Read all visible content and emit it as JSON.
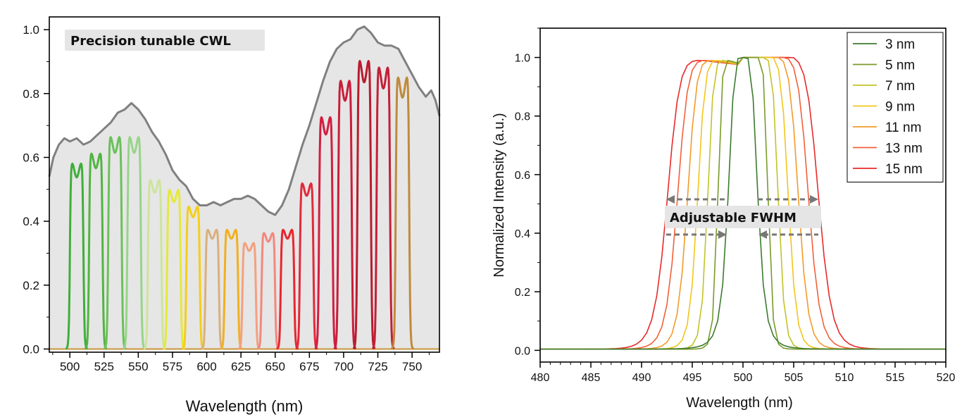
{
  "chart_data": [
    {
      "type": "line",
      "xlabel": "Wavelength (nm)",
      "ylabel": "",
      "xlim": [
        485,
        770
      ],
      "ylim": [
        -0.01,
        1.04
      ],
      "x_ticks": [
        500,
        525,
        550,
        575,
        600,
        625,
        650,
        675,
        700,
        725,
        750
      ],
      "y_ticks": [
        0.0,
        0.2,
        0.4,
        0.6,
        0.8,
        1.0
      ],
      "y_tick_labels": [
        "0.0",
        "0.2",
        "0.4",
        "0.6",
        "0.8",
        "1.0"
      ],
      "grid": false,
      "annotation": "Precision tunable CWL",
      "envelope": {
        "color": "#808080",
        "fill": "#e6e6e6",
        "x": [
          485,
          488,
          492,
          496,
          500,
          505,
          510,
          515,
          520,
          525,
          530,
          535,
          540,
          545,
          550,
          555,
          560,
          565,
          570,
          575,
          580,
          585,
          590,
          595,
          600,
          605,
          610,
          615,
          620,
          625,
          630,
          635,
          640,
          645,
          650,
          655,
          660,
          665,
          670,
          675,
          680,
          685,
          690,
          695,
          700,
          705,
          710,
          715,
          720,
          725,
          730,
          735,
          740,
          745,
          750,
          755,
          760,
          764,
          767,
          770
        ],
        "y": [
          0.54,
          0.6,
          0.64,
          0.66,
          0.65,
          0.66,
          0.64,
          0.65,
          0.67,
          0.69,
          0.71,
          0.74,
          0.75,
          0.77,
          0.75,
          0.72,
          0.68,
          0.65,
          0.61,
          0.56,
          0.53,
          0.51,
          0.47,
          0.45,
          0.45,
          0.46,
          0.45,
          0.46,
          0.47,
          0.47,
          0.48,
          0.47,
          0.45,
          0.43,
          0.42,
          0.45,
          0.5,
          0.57,
          0.64,
          0.7,
          0.77,
          0.84,
          0.9,
          0.94,
          0.96,
          0.97,
          1.0,
          1.01,
          0.99,
          0.96,
          0.95,
          0.95,
          0.94,
          0.9,
          0.86,
          0.82,
          0.79,
          0.81,
          0.78,
          0.73
        ]
      },
      "series": [
        {
          "center": 505,
          "peak": 0.56,
          "width": 10,
          "color": "#3fae3a"
        },
        {
          "center": 519,
          "peak": 0.59,
          "width": 10,
          "color": "#52b442"
        },
        {
          "center": 533,
          "peak": 0.64,
          "width": 10,
          "color": "#6cc05a"
        },
        {
          "center": 547,
          "peak": 0.64,
          "width": 10,
          "color": "#98d48a"
        },
        {
          "center": 562,
          "peak": 0.51,
          "width": 10,
          "color": "#cde59a"
        },
        {
          "center": 576,
          "peak": 0.48,
          "width": 10,
          "color": "#e6e83a"
        },
        {
          "center": 590,
          "peak": 0.43,
          "width": 10,
          "color": "#f4ce1a"
        },
        {
          "center": 604,
          "peak": 0.36,
          "width": 10,
          "color": "#d9b07e"
        },
        {
          "center": 618,
          "peak": 0.36,
          "width": 10,
          "color": "#f0b020"
        },
        {
          "center": 631,
          "peak": 0.32,
          "width": 10,
          "color": "#f4a07e"
        },
        {
          "center": 645,
          "peak": 0.35,
          "width": 10,
          "color": "#f2887e"
        },
        {
          "center": 659,
          "peak": 0.36,
          "width": 10,
          "color": "#e8262e"
        },
        {
          "center": 673,
          "peak": 0.5,
          "width": 10,
          "color": "#e12a3c"
        },
        {
          "center": 687,
          "peak": 0.7,
          "width": 10,
          "color": "#d21e40"
        },
        {
          "center": 701,
          "peak": 0.81,
          "width": 10,
          "color": "#c81e3a"
        },
        {
          "center": 715,
          "peak": 0.87,
          "width": 10,
          "color": "#b81c2e"
        },
        {
          "center": 729,
          "peak": 0.85,
          "width": 10,
          "color": "#c41f38"
        },
        {
          "center": 743,
          "peak": 0.82,
          "width": 10,
          "color": "#bf8a3c"
        }
      ]
    },
    {
      "type": "line",
      "xlabel": "Wavelength (nm)",
      "ylabel": "Normalized Intensity (a.u.)",
      "xlim": [
        480,
        520
      ],
      "ylim": [
        -0.04,
        1.1
      ],
      "x_ticks": [
        480,
        485,
        490,
        495,
        500,
        505,
        510,
        515,
        520
      ],
      "y_ticks": [
        0.0,
        0.2,
        0.4,
        0.6,
        0.8,
        1.0
      ],
      "y_tick_labels": [
        "0.0",
        "0.2",
        "0.4",
        "0.6",
        "0.8",
        "1.0"
      ],
      "grid": false,
      "legend_position": "top-right",
      "annotation": "Adjustable FWHM",
      "series": [
        {
          "name": "3 nm",
          "fwhm": 3,
          "color": "#3c7a2e"
        },
        {
          "name": "5 nm",
          "fwhm": 5,
          "color": "#7a9a2a"
        },
        {
          "name": "7 nm",
          "fwhm": 7,
          "color": "#c2c22a"
        },
        {
          "name": "9 nm",
          "fwhm": 9,
          "color": "#f2c51c"
        },
        {
          "name": "11 nm",
          "fwhm": 11,
          "color": "#f39a2a"
        },
        {
          "name": "13 nm",
          "fwhm": 13,
          "color": "#f2603a"
        },
        {
          "name": "15 nm",
          "fwhm": 15,
          "color": "#e62a2a"
        }
      ]
    }
  ]
}
